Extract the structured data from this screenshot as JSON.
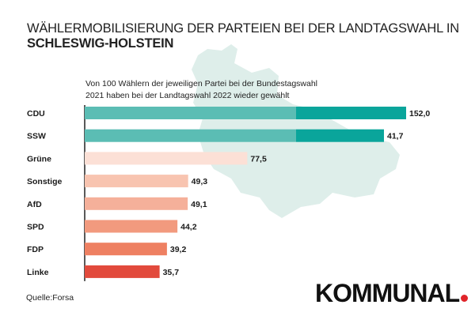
{
  "header": {
    "title_line1": "WÄHLERMOBILISIERUNG DER PARTEIEN BEI DER LANDTAGSWAHL IN",
    "title_line2": "SCHLESWIG-HOLSTEIN",
    "subtitle_line1": "Von 100 Wählern der jeweiligen Partei bei der Bundestagswahl",
    "subtitle_line2": "2021 haben bei der Landtagswahl 2022 wieder gewählt"
  },
  "footer": {
    "source": "Quelle:Forsa",
    "brand": "KOMMUNAL"
  },
  "colors": {
    "map": "#deeeea",
    "axis": "#222222",
    "overflow_bar": "#0aa59b"
  },
  "chart_data": {
    "type": "bar",
    "orientation": "horizontal",
    "title": "WÄHLERMOBILISIERUNG DER PARTEIEN BEI DER LANDTAGSWAHL IN SCHLESWIG-HOLSTEIN",
    "xlabel": "",
    "ylabel": "",
    "xlim": [
      0,
      100
    ],
    "grid": false,
    "categories": [
      "CDU",
      "SSW",
      "Grüne",
      "Sonstige",
      "AfD",
      "SPD",
      "FDP",
      "Linke"
    ],
    "values": [
      152.0,
      41.7,
      77.5,
      49.3,
      49.1,
      44.2,
      39.2,
      35.7
    ],
    "value_labels": [
      "152,0",
      "41,7",
      "77,5",
      "49,3",
      "49,1",
      "44,2",
      "39,2",
      "35,7"
    ],
    "bar_colors": [
      "#5bbdb4",
      "#5bbdb4",
      "#fce0d6",
      "#f8c4b0",
      "#f5b09a",
      "#f29a7e",
      "#ee8062",
      "#e24a3c"
    ]
  }
}
